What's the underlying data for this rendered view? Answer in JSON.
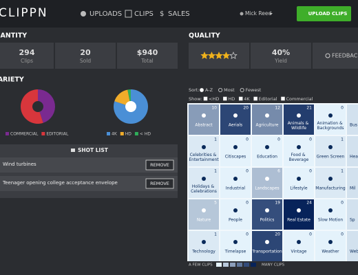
{
  "header": {
    "logo": "CLIPPN",
    "nav": [
      "UPLOADS",
      "CLIPS",
      "SALES"
    ],
    "user": "Mick Reed",
    "button": "UPLOAD CLIPS"
  },
  "quantity": {
    "title": "QUANTITY",
    "stats": [
      {
        "value": "294",
        "label": "Clips"
      },
      {
        "value": "20",
        "label": "Sold"
      },
      {
        "value": "$940",
        "label": "Total"
      }
    ]
  },
  "quality": {
    "title": "QUALITY",
    "rating": 4,
    "rating_max": 5,
    "yield": {
      "value": "40%",
      "label": "Yield"
    },
    "feedback": "FEEDBACK"
  },
  "variety": {
    "title": "VARIETY",
    "charts": [
      {
        "type": "pie",
        "categories": [
          "COMMERCIAL",
          "EDITORIAL"
        ],
        "values": [
          45,
          55
        ],
        "colors": [
          "#7a2a90",
          "#d8363c"
        ],
        "hole_color": "#2b2d31"
      },
      {
        "type": "pie",
        "categories": [
          "4K",
          "HD",
          "< HD"
        ],
        "values": [
          80,
          17,
          3
        ],
        "colors": [
          "#4a8fd6",
          "#f0ac2a",
          "#2fae5a"
        ],
        "hole_color": "#ffffff"
      }
    ]
  },
  "shot_list": {
    "title": "SHOT LIST",
    "items": [
      "Wind turbines",
      "Teenager opening college acceptance envelope"
    ],
    "action": "REMOVE"
  },
  "filters": {
    "sort_label": "Sort:",
    "sort_options": [
      "A-Z",
      "Most",
      "Fewest"
    ],
    "sort_selected": 0,
    "show_label": "Show:",
    "show_options": [
      "<HD",
      "HD",
      "4K",
      "Editorial",
      "Commercial"
    ],
    "show_checked": [
      true,
      true,
      true,
      true,
      true
    ]
  },
  "categories": {
    "color_scale": [
      "#e4f2fb",
      "#07235a"
    ],
    "tiles": [
      {
        "name": "Abstract",
        "count": 10
      },
      {
        "name": "Aerials",
        "count": 20
      },
      {
        "name": "Agriculture",
        "count": 12
      },
      {
        "name": "Animals & Wildlife",
        "count": 21
      },
      {
        "name": "Animation & Backgrounds",
        "count": 0
      },
      {
        "name": "Bus"
      },
      {
        "name": "Celebrities & Entertainment",
        "count": 1
      },
      {
        "name": "Citiscapes",
        "count": 0
      },
      {
        "name": "Education",
        "count": 0
      },
      {
        "name": "Food & Beverage",
        "count": 0
      },
      {
        "name": "Green Screen",
        "count": 1
      },
      {
        "name": "Healt"
      },
      {
        "name": "Holidays & Celebrations",
        "count": 1
      },
      {
        "name": "Industrial",
        "count": 0
      },
      {
        "name": "Landscapes",
        "count": 6
      },
      {
        "name": "Lifestyle",
        "count": 0
      },
      {
        "name": "Manufacturing",
        "count": 1
      },
      {
        "name": "Mil"
      },
      {
        "name": "Nature",
        "count": 5
      },
      {
        "name": "People",
        "count": 0
      },
      {
        "name": "Politics",
        "count": 19
      },
      {
        "name": "Real Estate",
        "count": 24
      },
      {
        "name": "Slow Motion",
        "count": 0
      },
      {
        "name": "Sp"
      },
      {
        "name": "Technology",
        "count": 1
      },
      {
        "name": "Timelapse",
        "count": 0
      },
      {
        "name": "Transportation",
        "count": 20
      },
      {
        "name": "Vintage",
        "count": 0
      },
      {
        "name": "Weather",
        "count": 0
      },
      {
        "name": "Web"
      }
    ],
    "legend": {
      "low": "A FEW CLIPS",
      "high": "MANY CLIPS"
    }
  }
}
